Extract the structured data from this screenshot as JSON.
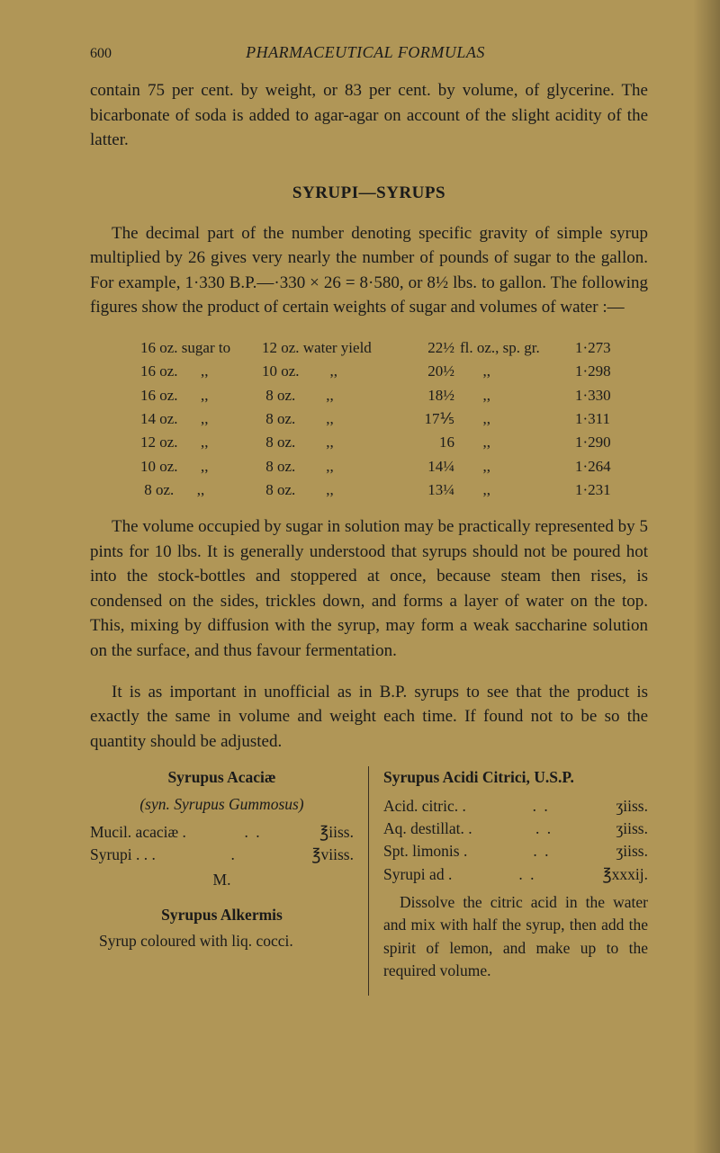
{
  "header": {
    "page": "600",
    "running": "PHARMACEUTICAL FORMULAS"
  },
  "para1": "contain 75 per cent. by weight, or 83 per cent. by volume, of glycerine. The bicarbonate of soda is added to agar-agar on account of the slight acidity of the latter.",
  "heading": "SYRUPI—SYRUPS",
  "para2": "The decimal part of the number denoting specific gravity of simple syrup multiplied by 26 gives very nearly the number of pounds of sugar to the gallon. For example, 1·330 B.P.—·330 × 26 = 8·580, or 8½ lbs. to gallon. The following figures show the product of certain weights of sugar and volumes of water :—",
  "table": [
    {
      "c1": "16 oz. sugar to",
      "c2": "12 oz. water yield",
      "c3": "22½",
      "c4": "fl. oz., sp. gr.",
      "c5": "1·273"
    },
    {
      "c1": "16 oz.      ,,",
      "c2": "10 oz.        ,,",
      "c3": "20½",
      "c4": "      ,,",
      "c5": "1·298"
    },
    {
      "c1": "16 oz.      ,,",
      "c2": " 8 oz.        ,,",
      "c3": "18½",
      "c4": "      ,,",
      "c5": "1·330"
    },
    {
      "c1": "14 oz.      ,,",
      "c2": " 8 oz.        ,,",
      "c3": "17⅕",
      "c4": "      ,,",
      "c5": "1·311"
    },
    {
      "c1": "12 oz.      ,,",
      "c2": " 8 oz.        ,,",
      "c3": "16",
      "c4": "      ,,",
      "c5": "1·290"
    },
    {
      "c1": "10 oz.      ,,",
      "c2": " 8 oz.        ,,",
      "c3": "14¼",
      "c4": "      ,,",
      "c5": "1·264"
    },
    {
      "c1": " 8 oz.      ,,",
      "c2": " 8 oz.        ,,",
      "c3": "13¼",
      "c4": "      ,,",
      "c5": "1·231"
    }
  ],
  "para3": "The volume occupied by sugar in solution may be practically represented by 5 pints for 10 lbs. It is generally understood that syrups should not be poured hot into the stock-bottles and stoppered at once, because steam then rises, is condensed on the sides, trickles down, and forms a layer of water on the top. This, mixing by diffusion with the syrup, may form a weak saccharine solution on the surface, and thus favour fermentation.",
  "para4": "It is as important in unofficial as in B.P. syrups to see that the product is exactly the same in volume and weight each time. If found not to be so the quantity should be adjusted.",
  "left": {
    "title1": "Syrupus Acaciæ",
    "syn": "(syn. Syrupus Gummosus)",
    "ing1_name": "Mucil. acaciæ .",
    "ing1_qty": "℥iiss.",
    "ing2_name": "Syrupi   .    .    .",
    "ing2_qty": "℥viiss.",
    "m": "M.",
    "title2": "Syrupus Alkermis",
    "instr2": "Syrup coloured with liq. cocci."
  },
  "right": {
    "title": "Syrupus Acidi Citrici, U.S.P.",
    "ing1_name": "Acid. citric.  .",
    "ing1_qty": "ʒiiss.",
    "ing2_name": "Aq. destillat.  .",
    "ing2_qty": "ʒiiss.",
    "ing3_name": "Spt. limonis  .",
    "ing3_qty": "ʒiiss.",
    "ing4_name": "Syrupi ad   .",
    "ing4_qty": "℥xxxij.",
    "instr": "Dissolve the citric acid in the water and mix with half the syrup, then add the spirit of lemon, and make up to the required volume."
  }
}
